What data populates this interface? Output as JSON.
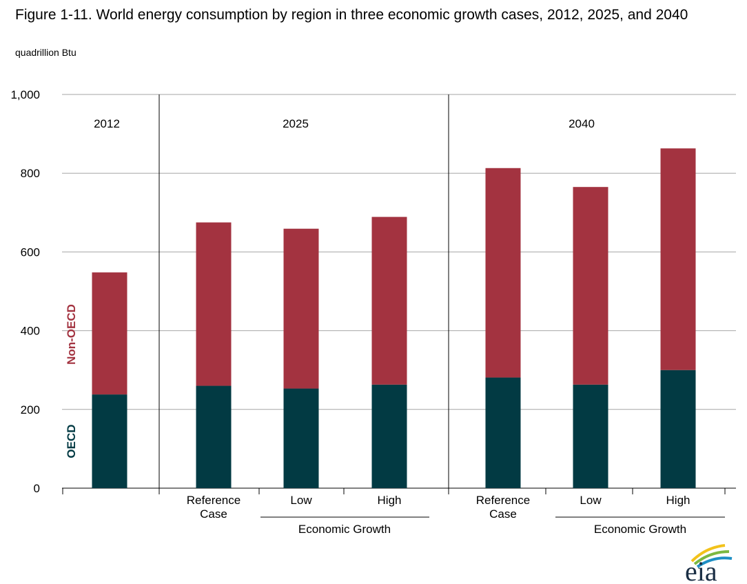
{
  "title": "Figure 1-11. World energy consumption by region in three economic growth cases, 2012, 2025, and 2040",
  "units": "quadrillion Btu",
  "logo_text": "eia",
  "chart_data": {
    "type": "bar",
    "stacked": true,
    "title": "Figure 1-11. World energy consumption by region in three economic growth cases, 2012, 2025, and 2040",
    "ylabel": "quadrillion Btu",
    "ylim": [
      0,
      1000
    ],
    "yticks": [
      0,
      200,
      400,
      600,
      800,
      1000
    ],
    "ytick_labels": [
      "0",
      "200",
      "400",
      "600",
      "800",
      "1,000"
    ],
    "grid": true,
    "panels": [
      "2012",
      "2025",
      "2040"
    ],
    "categories": [
      "",
      "Reference Case",
      "Low",
      "High",
      "Reference Case",
      "Low",
      "High"
    ],
    "group_label": "Economic Growth",
    "series": [
      {
        "name": "OECD",
        "color": "#023a43",
        "values": [
          238,
          260,
          253,
          263,
          281,
          263,
          300
        ]
      },
      {
        "name": "Non-OECD",
        "color": "#a33340",
        "values": [
          310,
          415,
          406,
          426,
          532,
          502,
          563
        ]
      }
    ]
  }
}
